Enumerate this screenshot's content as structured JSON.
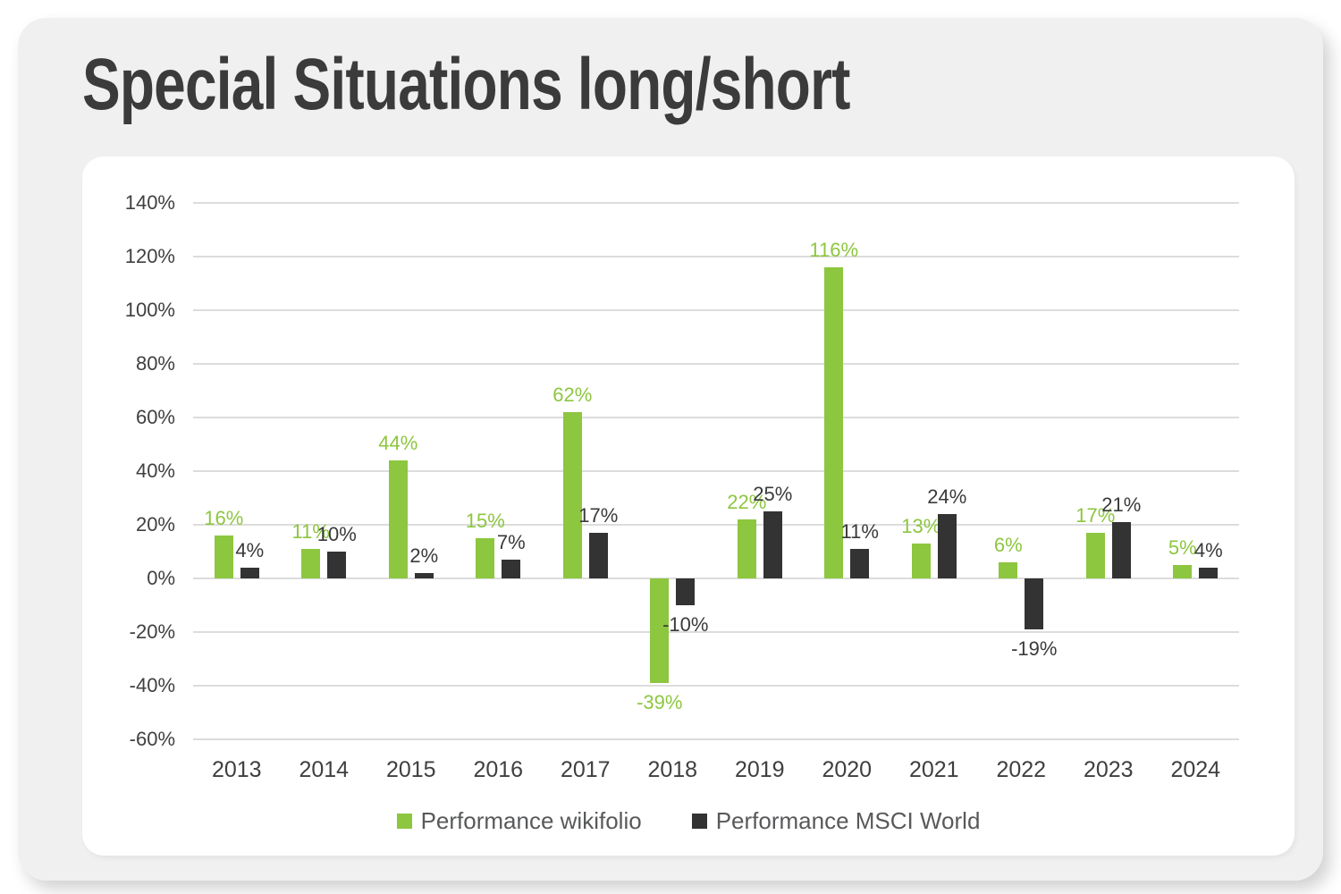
{
  "page": {
    "title": "Special Situations long/short"
  },
  "chart_data": {
    "type": "bar",
    "title": "Special Situations long/short",
    "categories": [
      "2013",
      "2014",
      "2015",
      "2016",
      "2017",
      "2018",
      "2019",
      "2020",
      "2021",
      "2022",
      "2023",
      "2024"
    ],
    "series": [
      {
        "name": "Performance wikifolio",
        "color": "#8dc63f",
        "label_color": "#8dc63f",
        "values": [
          16,
          11,
          44,
          15,
          62,
          -39,
          22,
          116,
          13,
          6,
          17,
          5
        ]
      },
      {
        "name": "Performance MSCI World",
        "color": "#333333",
        "label_color": "#3a3a3a",
        "values": [
          4,
          10,
          2,
          7,
          17,
          -10,
          25,
          11,
          24,
          -19,
          21,
          4
        ]
      }
    ],
    "value_label_suffix": "%",
    "y_axis": {
      "tick_values": [
        140,
        120,
        100,
        80,
        60,
        40,
        20,
        0,
        -20,
        -40,
        -60
      ],
      "tick_labels": [
        "140%",
        "120%",
        "100%",
        "80%",
        "60%",
        "40%",
        "20%",
        "0%",
        "-20%",
        "-40%",
        "-60%"
      ],
      "ylim": [
        -60,
        140
      ]
    },
    "grid": true,
    "legend_position": "bottom"
  },
  "colors": {
    "accent_green": "#8dc63f",
    "accent_dark": "#333333",
    "grid": "#dcdcdc",
    "card_background": "#f0f0f1",
    "panel_background": "#ffffff",
    "title_text": "#3b3b3b",
    "axis_text": "#404040",
    "legend_text": "#58595b"
  }
}
